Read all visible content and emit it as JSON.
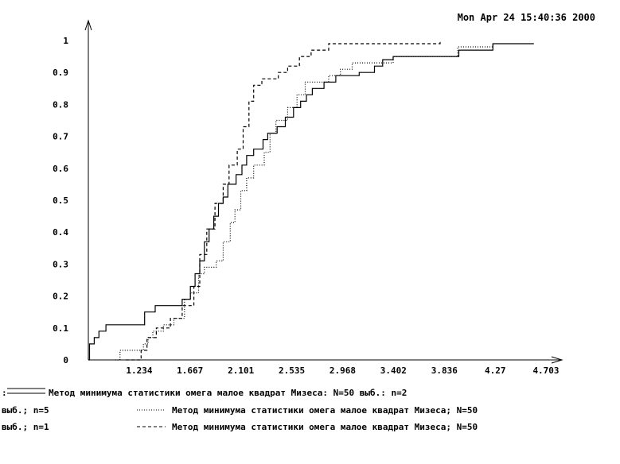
{
  "header": {
    "timestamp": "Mon Apr 24 15:40:36 2000"
  },
  "chart_data": {
    "type": "line",
    "title": "",
    "xlabel": "",
    "ylabel": "",
    "xlim": [
      0.8,
      4.703
    ],
    "ylim": [
      0,
      1
    ],
    "grid": false,
    "x_ticks": [
      "1.234",
      "1.667",
      "2.101",
      "2.535",
      "2.968",
      "3.402",
      "3.836",
      "4.27",
      "4.703"
    ],
    "y_ticks": [
      "0",
      "0.1",
      "0.2",
      "0.3",
      "0.4",
      "0.5",
      "0.6",
      "0.7",
      "0.8",
      "0.9",
      "1"
    ],
    "legend_position": "bottom",
    "legend": [
      {
        "prefix": ":",
        "text": "Метод минимума статистики омега малое квадрат Мизеса: N=50 выб.: n=2",
        "style": "solid"
      },
      {
        "prefix": "выб.; n=5",
        "text": "Метод минимума статистики омега малое квадрат Мизеса; N=50",
        "style": "dotted"
      },
      {
        "prefix": "выб.; n=1",
        "text": "Метод минимума статистики омега малое квадрат Мизеса; N=50",
        "style": "dashed"
      }
    ],
    "series": [
      {
        "style": "solid",
        "color": "#000000",
        "values": [
          [
            0.8,
            0.0
          ],
          [
            0.81,
            0.05
          ],
          [
            0.85,
            0.07
          ],
          [
            0.89,
            0.09
          ],
          [
            0.95,
            0.11
          ],
          [
            1.28,
            0.15
          ],
          [
            1.37,
            0.17
          ],
          [
            1.6,
            0.19
          ],
          [
            1.67,
            0.23
          ],
          [
            1.71,
            0.27
          ],
          [
            1.75,
            0.31
          ],
          [
            1.79,
            0.37
          ],
          [
            1.83,
            0.41
          ],
          [
            1.87,
            0.45
          ],
          [
            1.91,
            0.49
          ],
          [
            1.95,
            0.51
          ],
          [
            1.99,
            0.55
          ],
          [
            2.06,
            0.58
          ],
          [
            2.11,
            0.61
          ],
          [
            2.15,
            0.64
          ],
          [
            2.21,
            0.66
          ],
          [
            2.29,
            0.69
          ],
          [
            2.33,
            0.71
          ],
          [
            2.41,
            0.73
          ],
          [
            2.48,
            0.76
          ],
          [
            2.55,
            0.79
          ],
          [
            2.61,
            0.81
          ],
          [
            2.66,
            0.83
          ],
          [
            2.71,
            0.85
          ],
          [
            2.81,
            0.87
          ],
          [
            2.91,
            0.89
          ],
          [
            3.11,
            0.9
          ],
          [
            3.24,
            0.92
          ],
          [
            3.31,
            0.94
          ],
          [
            3.4,
            0.95
          ],
          [
            3.96,
            0.97
          ],
          [
            4.25,
            0.99
          ],
          [
            4.6,
            0.99
          ]
        ]
      },
      {
        "style": "dotted",
        "color": "#000000",
        "values": [
          [
            1.03,
            0.0
          ],
          [
            1.07,
            0.03
          ],
          [
            1.27,
            0.05
          ],
          [
            1.31,
            0.07
          ],
          [
            1.35,
            0.09
          ],
          [
            1.44,
            0.11
          ],
          [
            1.53,
            0.13
          ],
          [
            1.62,
            0.19
          ],
          [
            1.67,
            0.21
          ],
          [
            1.74,
            0.27
          ],
          [
            1.79,
            0.29
          ],
          [
            1.89,
            0.31
          ],
          [
            1.95,
            0.37
          ],
          [
            2.01,
            0.43
          ],
          [
            2.05,
            0.47
          ],
          [
            2.1,
            0.53
          ],
          [
            2.15,
            0.57
          ],
          [
            2.21,
            0.61
          ],
          [
            2.3,
            0.65
          ],
          [
            2.35,
            0.71
          ],
          [
            2.4,
            0.75
          ],
          [
            2.5,
            0.79
          ],
          [
            2.58,
            0.83
          ],
          [
            2.65,
            0.87
          ],
          [
            2.85,
            0.89
          ],
          [
            2.95,
            0.91
          ],
          [
            3.05,
            0.93
          ],
          [
            3.4,
            0.95
          ],
          [
            3.95,
            0.98
          ],
          [
            4.25,
            0.99
          ]
        ]
      },
      {
        "style": "dashed",
        "color": "#000000",
        "values": [
          [
            1.12,
            0.0
          ],
          [
            1.25,
            0.03
          ],
          [
            1.3,
            0.07
          ],
          [
            1.38,
            0.1
          ],
          [
            1.5,
            0.13
          ],
          [
            1.6,
            0.17
          ],
          [
            1.7,
            0.23
          ],
          [
            1.75,
            0.33
          ],
          [
            1.81,
            0.41
          ],
          [
            1.88,
            0.49
          ],
          [
            1.95,
            0.55
          ],
          [
            2.0,
            0.61
          ],
          [
            2.07,
            0.66
          ],
          [
            2.12,
            0.73
          ],
          [
            2.17,
            0.81
          ],
          [
            2.21,
            0.86
          ],
          [
            2.28,
            0.88
          ],
          [
            2.42,
            0.9
          ],
          [
            2.5,
            0.92
          ],
          [
            2.6,
            0.95
          ],
          [
            2.7,
            0.97
          ],
          [
            2.85,
            0.99
          ],
          [
            3.8,
            1.0
          ]
        ]
      }
    ]
  }
}
